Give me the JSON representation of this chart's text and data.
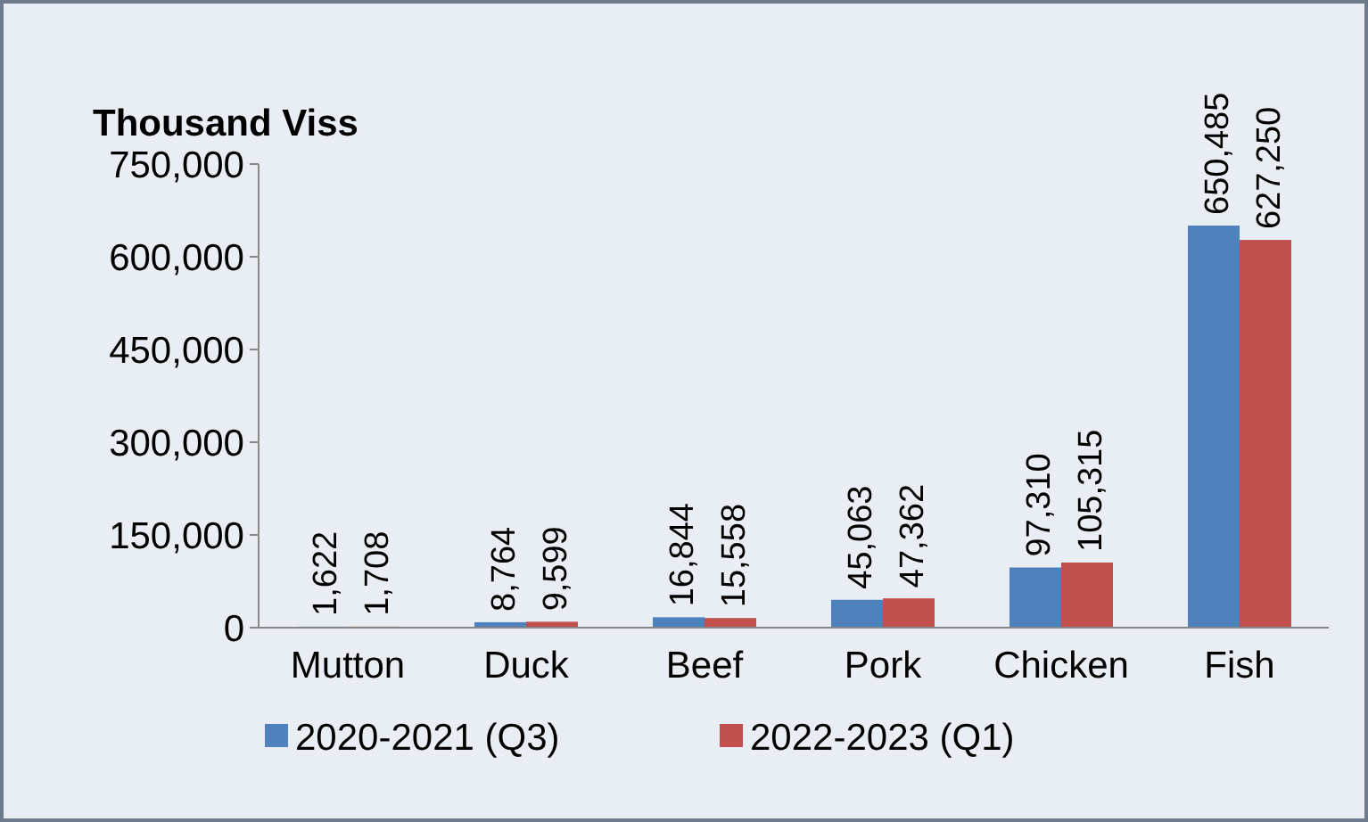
{
  "chart_data": {
    "type": "bar",
    "ylabel": "Thousand Viss",
    "categories": [
      "Mutton",
      "Duck",
      "Beef",
      "Pork",
      "Chicken",
      "Fish"
    ],
    "series": [
      {
        "name": "2020-2021 (Q3)",
        "color": "#4f81bd",
        "values": [
          1622,
          8764,
          16844,
          45063,
          97310,
          650485
        ],
        "value_labels": [
          "1,622",
          "8,764",
          "16,844",
          "45,063",
          "97,310",
          "650,485"
        ]
      },
      {
        "name": "2022-2023 (Q1)",
        "color": "#c0504d",
        "values": [
          1708,
          9599,
          15558,
          47362,
          105315,
          627250
        ],
        "value_labels": [
          "1,708",
          "9,599",
          "15,558",
          "47,362",
          "105,315",
          "627,250"
        ]
      }
    ],
    "ylim": [
      0,
      750000
    ],
    "yticks": [
      {
        "value": 0,
        "label": "0"
      },
      {
        "value": 150000,
        "label": "150,000"
      },
      {
        "value": 300000,
        "label": "300,000"
      },
      {
        "value": 450000,
        "label": "450,000"
      },
      {
        "value": 600000,
        "label": "600,000"
      },
      {
        "value": 750000,
        "label": "750,000"
      }
    ],
    "legend": "bottom",
    "grid": false
  }
}
